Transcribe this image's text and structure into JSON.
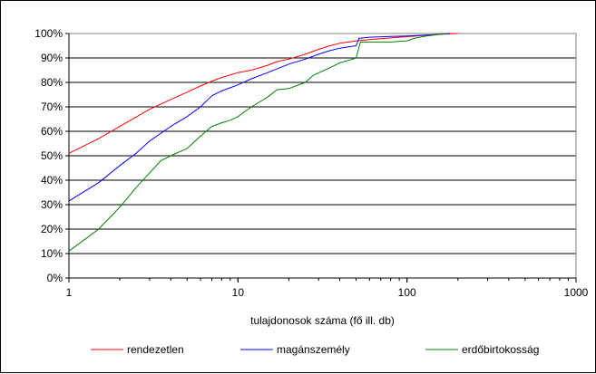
{
  "chart_data": {
    "type": "line",
    "x_scale": "log",
    "xlim": [
      1,
      1000
    ],
    "ylim": [
      0,
      100
    ],
    "xticks": [
      1,
      10,
      100,
      1000
    ],
    "xtick_labels": [
      "1",
      "10",
      "100",
      "1000"
    ],
    "ytick_labels": [
      "0%",
      "10%",
      "20%",
      "30%",
      "40%",
      "50%",
      "60%",
      "70%",
      "80%",
      "90%",
      "100%"
    ],
    "xlabel": "tulajdonosok száma (fő ill. db)",
    "ylabel": "",
    "grid": "horizontal",
    "legend_position": "bottom",
    "series": [
      {
        "name": "rendezetlen",
        "color": "#ff0000",
        "points": [
          [
            1,
            51
          ],
          [
            1.5,
            57
          ],
          [
            2,
            62
          ],
          [
            3,
            69
          ],
          [
            4,
            73
          ],
          [
            5,
            76
          ],
          [
            6,
            78.5
          ],
          [
            7,
            80.5
          ],
          [
            8,
            82
          ],
          [
            10,
            84
          ],
          [
            12,
            85
          ],
          [
            15,
            87
          ],
          [
            17,
            88.5
          ],
          [
            20,
            89.5
          ],
          [
            25,
            91.5
          ],
          [
            30,
            93.5
          ],
          [
            35,
            95
          ],
          [
            40,
            96
          ],
          [
            50,
            97
          ],
          [
            60,
            97.5
          ],
          [
            80,
            98.2
          ],
          [
            100,
            98.7
          ],
          [
            130,
            99.3
          ],
          [
            170,
            99.8
          ],
          [
            200,
            100
          ]
        ]
      },
      {
        "name": "magánszemély",
        "color": "#0000ff",
        "points": [
          [
            1,
            31.5
          ],
          [
            1.5,
            39
          ],
          [
            2,
            46
          ],
          [
            2.5,
            51
          ],
          [
            3,
            56
          ],
          [
            4,
            62
          ],
          [
            5,
            66
          ],
          [
            6,
            70
          ],
          [
            7,
            74.5
          ],
          [
            8,
            76.5
          ],
          [
            10,
            79
          ],
          [
            12,
            81.5
          ],
          [
            15,
            84
          ],
          [
            20,
            87.5
          ],
          [
            25,
            89.5
          ],
          [
            30,
            91.5
          ],
          [
            35,
            93
          ],
          [
            40,
            94
          ],
          [
            50,
            95
          ],
          [
            52,
            98
          ],
          [
            60,
            98.5
          ],
          [
            80,
            98.8
          ],
          [
            100,
            99
          ],
          [
            150,
            99.6
          ],
          [
            180,
            100
          ]
        ]
      },
      {
        "name": "erdőbirtokosság",
        "color": "#008000",
        "points": [
          [
            1,
            11
          ],
          [
            1.5,
            20
          ],
          [
            2,
            29
          ],
          [
            2.5,
            37
          ],
          [
            3,
            43
          ],
          [
            3.5,
            48
          ],
          [
            4,
            50
          ],
          [
            5,
            53
          ],
          [
            6,
            58
          ],
          [
            7,
            62
          ],
          [
            8,
            63.5
          ],
          [
            9,
            64.5
          ],
          [
            10,
            66
          ],
          [
            12,
            70
          ],
          [
            15,
            74
          ],
          [
            17,
            77
          ],
          [
            20,
            77.5
          ],
          [
            25,
            80
          ],
          [
            28,
            83
          ],
          [
            35,
            86
          ],
          [
            40,
            88
          ],
          [
            45,
            89
          ],
          [
            50,
            90
          ],
          [
            53,
            96.5
          ],
          [
            60,
            96.5
          ],
          [
            80,
            96.5
          ],
          [
            100,
            97
          ],
          [
            110,
            98
          ],
          [
            130,
            99
          ],
          [
            170,
            100
          ]
        ]
      }
    ]
  }
}
